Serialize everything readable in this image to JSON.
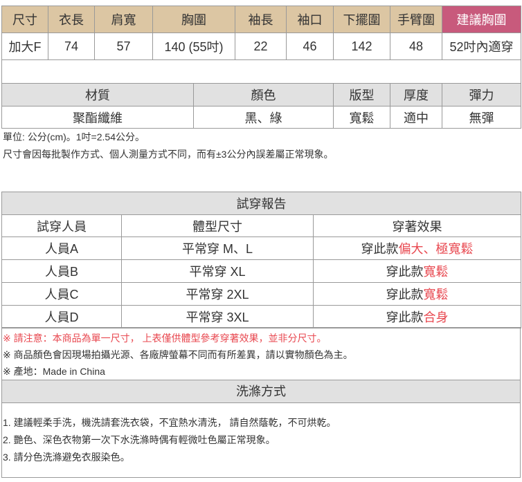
{
  "size_table": {
    "headers": [
      "尺寸",
      "衣長",
      "肩寬",
      "胸圍",
      "袖長",
      "袖口",
      "下擺圍",
      "手臂圍",
      "建議胸圍"
    ],
    "row": [
      "加大F",
      "74",
      "57",
      "140 (55吋)",
      "22",
      "46",
      "142",
      "48",
      "52吋內適穿"
    ]
  },
  "material_table": {
    "headers": [
      "材質",
      "顏色",
      "版型",
      "厚度",
      "彈力"
    ],
    "row": [
      "聚酯纖維",
      "黑、綠",
      "寬鬆",
      "適中",
      "無彈"
    ]
  },
  "unit_note": "單位: 公分(cm)。1吋=2.54公分。",
  "error_note": "尺寸會因每批製作方式、個人測量方式不同，而有±3公分內誤差屬正常現象。",
  "fit_report": {
    "title": "試穿報告",
    "headers": [
      "試穿人員",
      "體型尺寸",
      "穿著效果"
    ],
    "rows": [
      {
        "person": "人員A",
        "size": "平常穿 M、L",
        "prefix": "穿此款",
        "effect": "偏大、極寬鬆"
      },
      {
        "person": "人員B",
        "size": "平常穿 XL",
        "prefix": "穿此款",
        "effect": "寬鬆"
      },
      {
        "person": "人員C",
        "size": "平常穿 2XL",
        "prefix": "穿此款",
        "effect": "寬鬆"
      },
      {
        "person": "人員D",
        "size": "平常穿 3XL",
        "prefix": "穿此款",
        "effect": "合身"
      }
    ]
  },
  "notices": [
    "※ 請注意：本商品為單一尺寸， 上表僅供體型參考穿著效果，並非分尺寸。",
    "※ 商品顏色會因現場拍攝光源、各廠牌螢幕不同而有所差異，請以實物顏色為主。",
    "※ 產地：Made in China"
  ],
  "washing": {
    "title": "洗滌方式",
    "items": [
      "1. 建議輕柔手洗，機洗請套洗衣袋，不宜熱水清洗， 請自然蔭乾，不可烘乾。",
      "2. 艷色、深色衣物第一次下水洗滌時偶有輕微吐色屬正常現象。",
      "3. 請分色洗滌避免衣服染色。"
    ]
  },
  "colors": {
    "header_tan": "#dcc6a3",
    "header_pink": "#c85a7c",
    "header_grey": "#e1e1e1",
    "accent_red": "#e8474f"
  }
}
